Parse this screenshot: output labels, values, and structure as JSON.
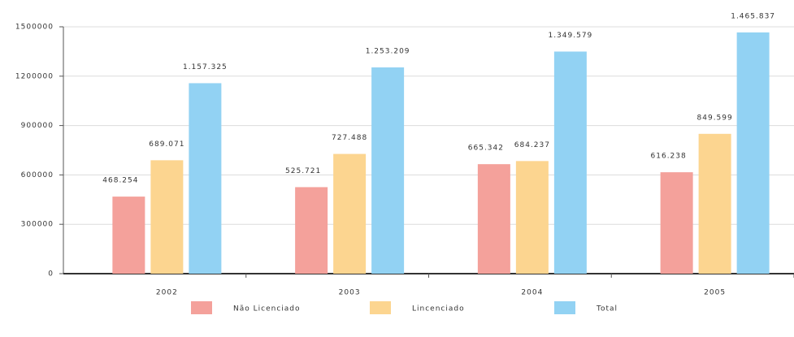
{
  "chart_data": {
    "type": "bar",
    "categories": [
      "2002",
      "2003",
      "2004",
      "2005"
    ],
    "series": [
      {
        "name": "Não Licenciado",
        "color": "#f4a19b",
        "values": [
          468254,
          525721,
          665342,
          616238
        ],
        "value_labels": [
          "468.254",
          "525.721",
          "665.342",
          "616.238"
        ]
      },
      {
        "name": "Lincenciado",
        "color": "#fcd590",
        "values": [
          689071,
          727488,
          684237,
          849599
        ],
        "value_labels": [
          "689.071",
          "727.488",
          "684.237",
          "849.599"
        ]
      },
      {
        "name": "Total",
        "color": "#92d2f3",
        "values": [
          1157325,
          1253209,
          1349579,
          1465837
        ],
        "value_labels": [
          "1.157.325",
          "1.253.209",
          "1.349.579",
          "1.465.837"
        ]
      }
    ],
    "ylim": [
      0,
      1500000
    ],
    "yticks": [
      0,
      300000,
      600000,
      900000,
      1200000,
      1500000
    ],
    "grid": true
  }
}
